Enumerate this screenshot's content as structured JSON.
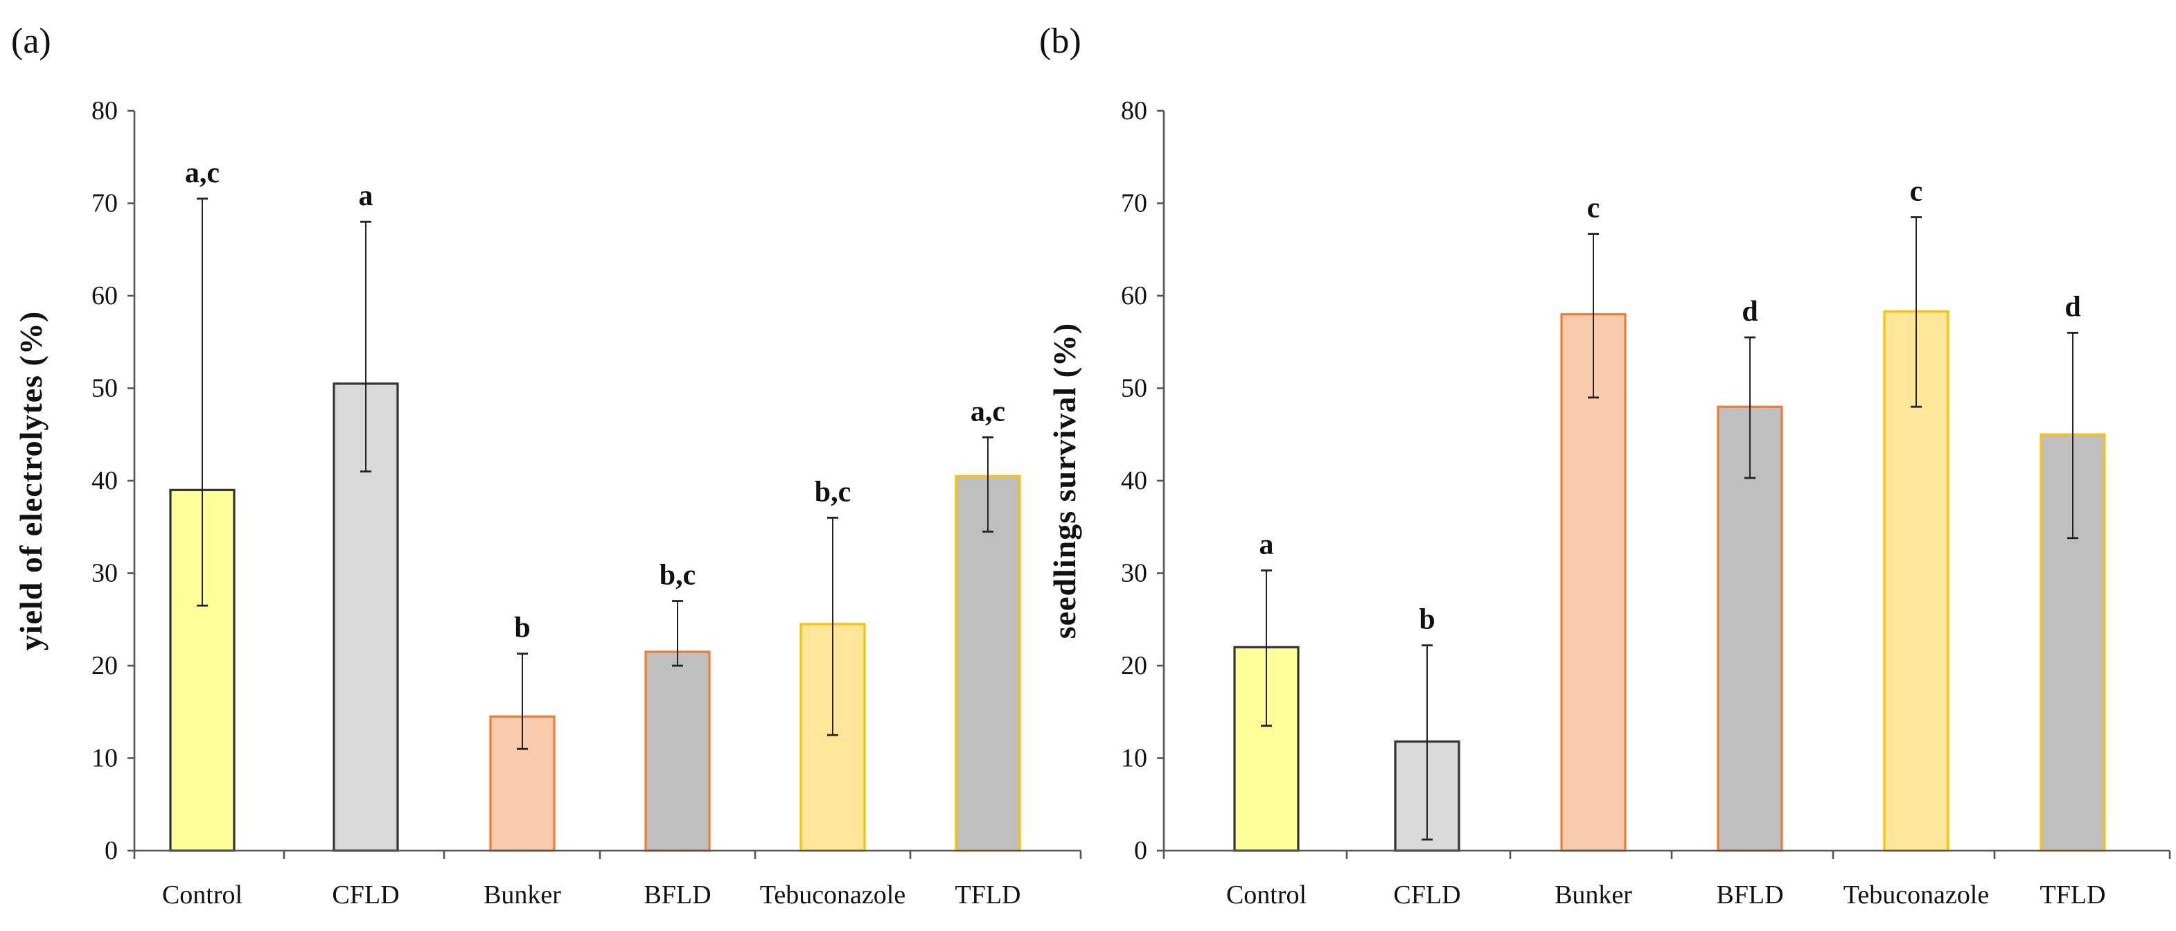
{
  "chart_data": [
    {
      "type": "bar",
      "panel_label": "(a)",
      "ylabel": "yield of electrolytes (%)",
      "xlabel": "",
      "ylim": [
        0,
        80
      ],
      "yticks": [
        "0",
        "10",
        "20",
        "30",
        "40",
        "50",
        "60",
        "70",
        "80"
      ],
      "categories": [
        "Control",
        "CFLD",
        "Bunker",
        "BFLD",
        "Tebuconazole",
        "TFLD"
      ],
      "values": [
        39,
        50.5,
        14.5,
        21.5,
        24.5,
        40.5
      ],
      "error_low": [
        26.5,
        41,
        11,
        20,
        12.5,
        34.5
      ],
      "error_high": [
        70.5,
        68,
        21.3,
        27,
        36,
        44.7
      ],
      "significance": [
        "a,c",
        "a",
        "b",
        "b,c",
        "b,c",
        "a,c"
      ],
      "fill_colors": [
        "#ffff99",
        "#d9d9d9",
        "#f8cbad",
        "#bfbfbf",
        "#ffe699",
        "#bfbfbf"
      ],
      "stroke_colors": [
        "#333333",
        "#333333",
        "#ed7d31",
        "#ed7d31",
        "#ffc000",
        "#ffc000"
      ],
      "grid": false
    },
    {
      "type": "bar",
      "panel_label": "(b)",
      "ylabel": "seedlings survival (%)",
      "xlabel": "",
      "ylim": [
        0,
        80
      ],
      "yticks": [
        "0",
        "10",
        "20",
        "30",
        "40",
        "50",
        "60",
        "70",
        "80"
      ],
      "categories": [
        "Control",
        "CFLD",
        "Bunker",
        "BFLD",
        "Tebuconazole",
        "TFLD"
      ],
      "values": [
        22,
        11.8,
        58,
        48,
        58.3,
        45
      ],
      "error_low": [
        13.5,
        1.2,
        49,
        40.3,
        48,
        33.8
      ],
      "error_high": [
        30.3,
        22.2,
        66.7,
        55.5,
        68.5,
        56
      ],
      "significance": [
        "a",
        "b",
        "c",
        "d",
        "c",
        "d"
      ],
      "fill_colors": [
        "#ffff99",
        "#d9d9d9",
        "#f8cbad",
        "#bfbfbf",
        "#ffe699",
        "#bfbfbf"
      ],
      "stroke_colors": [
        "#333333",
        "#333333",
        "#ed7d31",
        "#ed7d31",
        "#ffc000",
        "#ffc000"
      ],
      "grid": false
    }
  ]
}
